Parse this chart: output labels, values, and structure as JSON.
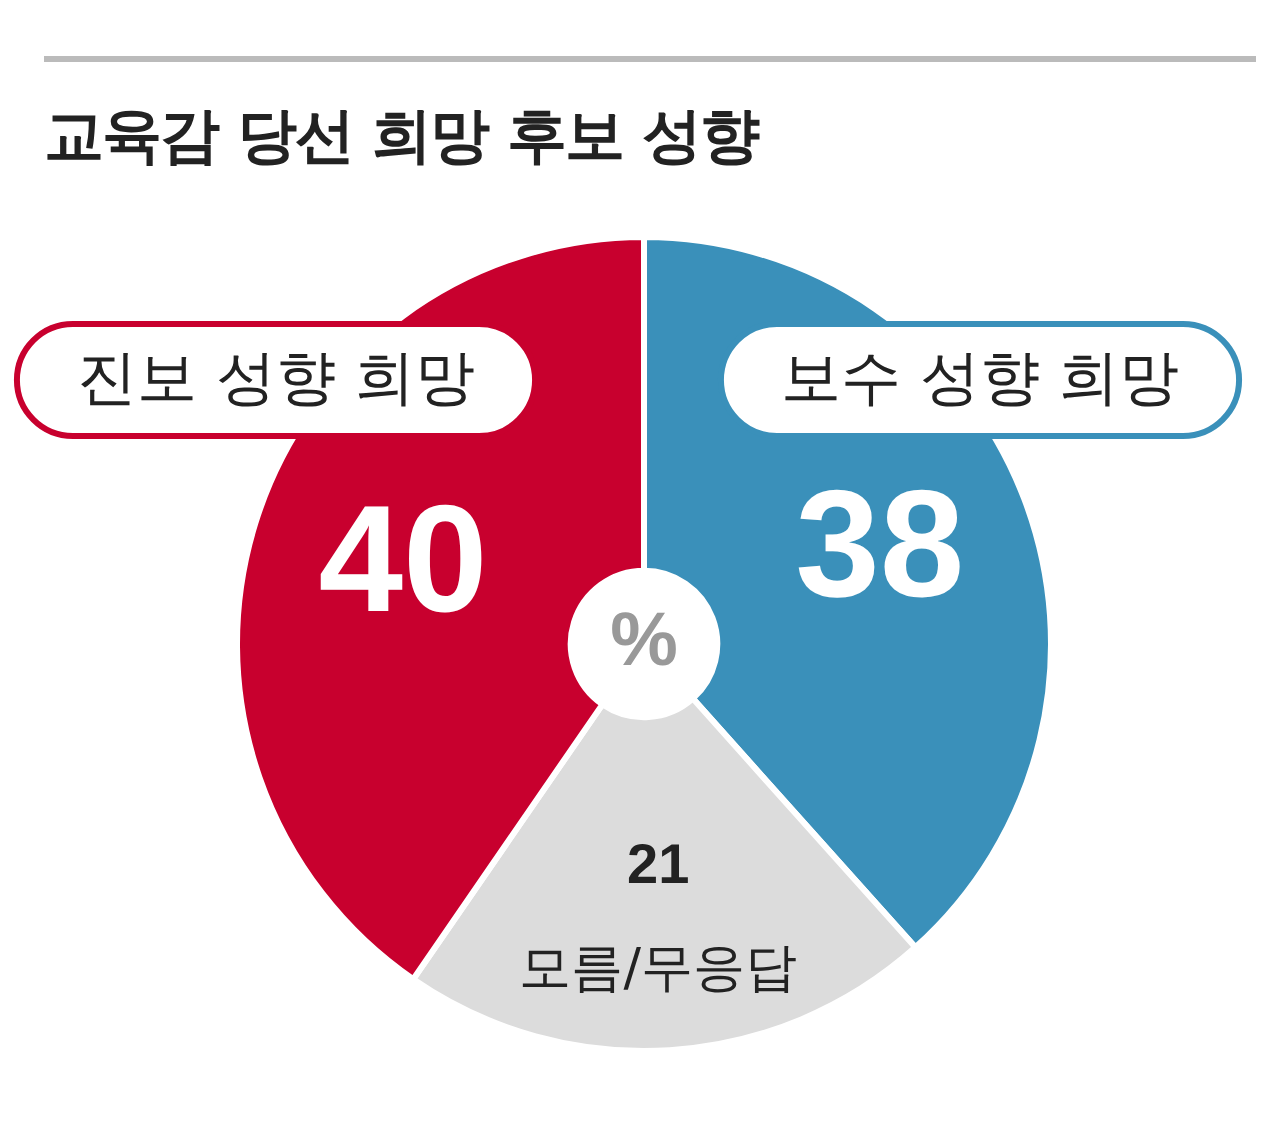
{
  "chart_data": {
    "type": "donut",
    "title": "교육감 당선 희망 후보 성향",
    "categories": [
      "보수 성향 희망",
      "모름/무응답",
      "진보 성향 희망"
    ],
    "values": [
      38,
      21,
      40
    ],
    "colors": [
      "#3a90ba",
      "#dcdcdc",
      "#c8002e"
    ],
    "data_labels": true,
    "legend": false,
    "annotations": [
      "%"
    ]
  }
}
